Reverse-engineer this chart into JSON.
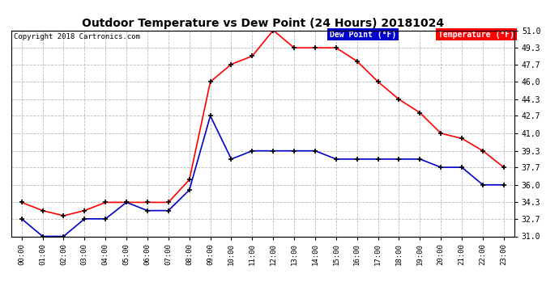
{
  "title": "Outdoor Temperature vs Dew Point (24 Hours) 20181024",
  "copyright": "Copyright 2018 Cartronics.com",
  "hours": [
    "00:00",
    "01:00",
    "02:00",
    "03:00",
    "04:00",
    "05:00",
    "06:00",
    "07:00",
    "08:00",
    "09:00",
    "10:00",
    "11:00",
    "12:00",
    "13:00",
    "14:00",
    "15:00",
    "16:00",
    "17:00",
    "18:00",
    "19:00",
    "20:00",
    "21:00",
    "22:00",
    "23:00"
  ],
  "temperature": [
    34.3,
    33.5,
    33.0,
    33.5,
    34.3,
    34.3,
    34.3,
    34.3,
    36.5,
    46.0,
    47.7,
    48.5,
    51.0,
    49.3,
    49.3,
    49.3,
    48.0,
    46.0,
    44.3,
    43.0,
    41.0,
    40.5,
    39.3,
    37.7
  ],
  "dew_point": [
    32.7,
    31.0,
    31.0,
    32.7,
    32.7,
    34.3,
    33.5,
    33.5,
    35.5,
    42.7,
    38.5,
    39.3,
    39.3,
    39.3,
    39.3,
    38.5,
    38.5,
    38.5,
    38.5,
    38.5,
    37.7,
    37.7,
    36.0,
    36.0
  ],
  "temp_color": "#ff0000",
  "dew_color": "#0000cc",
  "marker_color": "#000000",
  "background_color": "#ffffff",
  "grid_color": "#aaaaaa",
  "ylim": [
    31.0,
    51.0
  ],
  "yticks": [
    31.0,
    32.7,
    34.3,
    36.0,
    37.7,
    39.3,
    41.0,
    42.7,
    44.3,
    46.0,
    47.7,
    49.3,
    51.0
  ],
  "legend_dew_bg": "#0000cc",
  "legend_temp_bg": "#ff0000",
  "legend_text_color": "#ffffff"
}
